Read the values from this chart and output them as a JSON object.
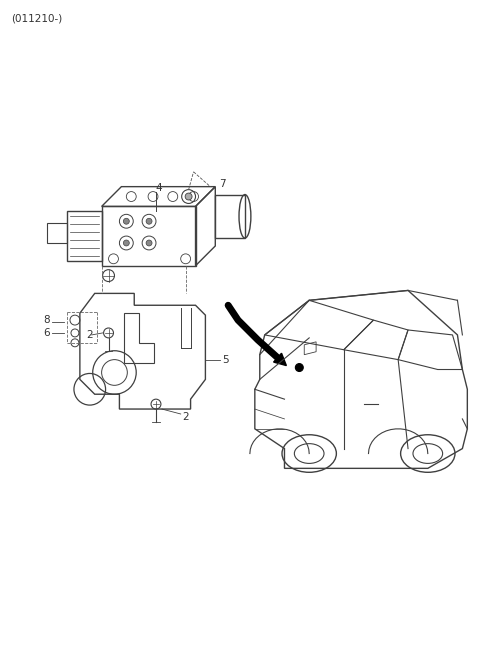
{
  "title": "(011210-)",
  "background_color": "#ffffff",
  "line_color": "#404040",
  "text_color": "#333333",
  "figsize": [
    4.8,
    6.55
  ],
  "dpi": 100,
  "label_fontsize": 7.5,
  "title_fontsize": 7.5
}
